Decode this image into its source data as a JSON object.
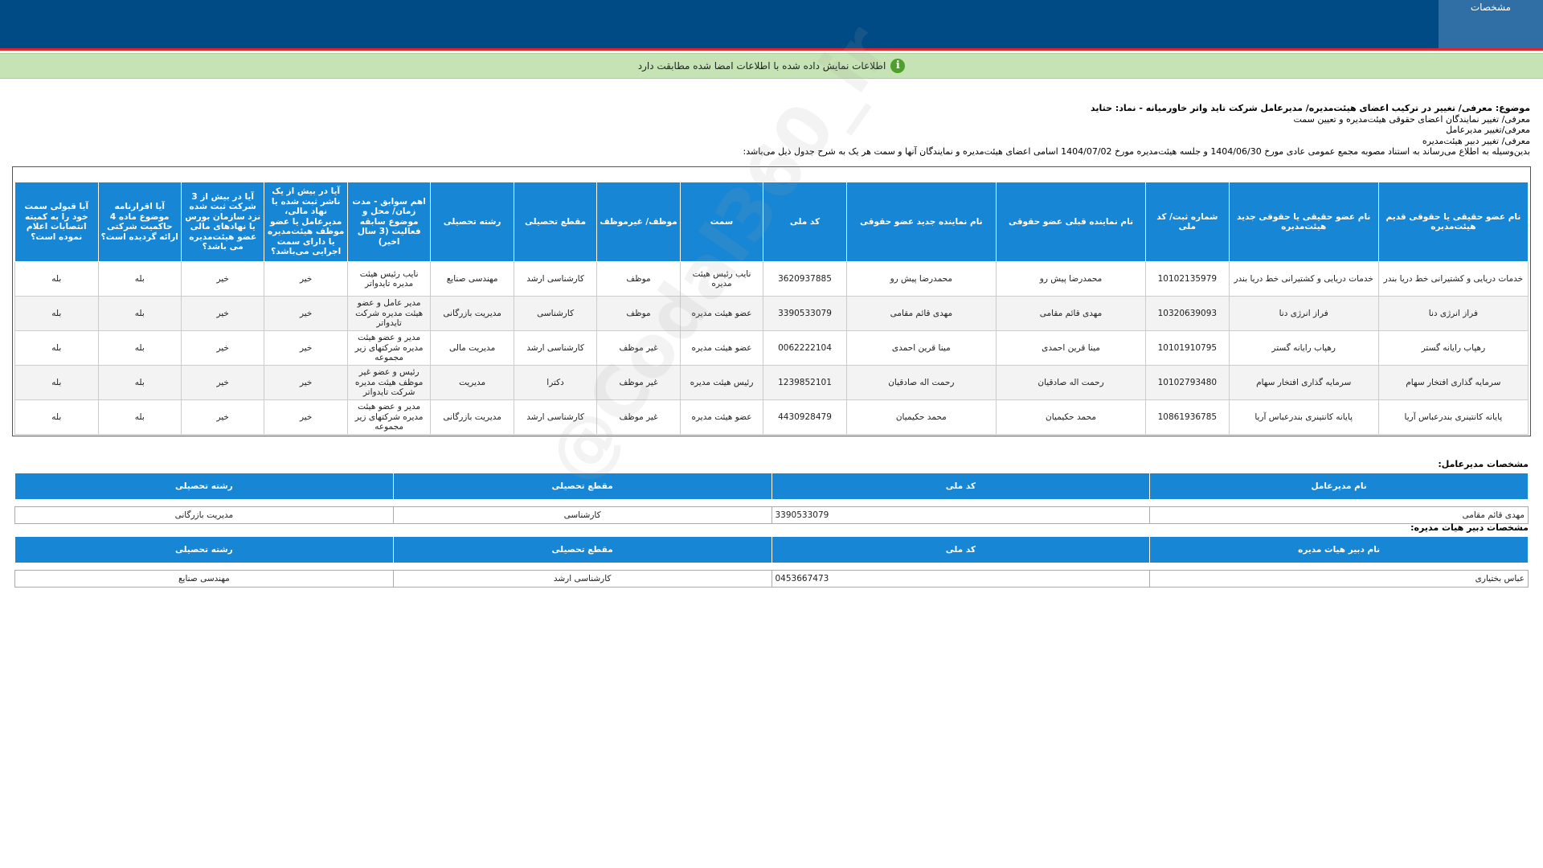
{
  "header": {
    "tab": "مشخصات"
  },
  "banner": "اطلاعات نمایش داده شده با اطلاعات امضا شده مطابقت دارد",
  "subject": {
    "title": "موضوع: معرفی/ تغییر در ترکیب اعضای هیئت‌مدیره/ مدیرعامل شرکت تاید واتر خاورمیانه - نماد: حتاید",
    "lines": [
      "معرفی/ تغییر نمایندگان اعضای حقوقی هیئت‌مدیره و تعیین سمت",
      "معرفی/تغییر مدیرعامل",
      "معرفی/ تغییر دبیر هیئت‌مدیره"
    ],
    "intro": "بدین‌وسیله به اطلاع می‌رساند به استناد مصوبه مجمع عمومی عادی مورخ 1404/06/30 و جلسه هیئت‌مدیره مورخ 1404/07/02 اسامی اعضای هیئت‌مدیره و نمایندگان آنها و سمت هر یک به شرح جدول ذیل می‌باشد:"
  },
  "board_table": {
    "columns": [
      "نام عضو حقیقی یا حقوقی قدیم هیئت‌مدیره",
      "نام عضو حقیقی یا حقوقی جدید هیئت‌مدیره",
      "شماره ثبت/ کد ملی",
      "نام نماینده قبلی عضو حقوقی",
      "نام نماینده جدید عضو حقوقی",
      "کد ملی",
      "سمت",
      "موظف/ غیرموظف",
      "مقطع تحصیلی",
      "رشته تحصیلی",
      "اهم سوابق - مدت زمان/ محل و موضوع سابقه فعالیت (3 سال اخیر)",
      "آیا در بیش از یک ناشر ثبت شده یا نهاد مالی، مدیرعامل یا عضو موظف هیئت‌مدیره یا دارای سمت اجرایی می‌باشد؟",
      "آیا در بیش از 3 شرکت ثبت شده نزد سازمان بورس یا نهادهای مالی عضو هیئت‌مدیره می باشد؟",
      "آیا اقرارنامه موضوع ماده 4 حاکمیت شرکتی ارائه گردیده است؟",
      "آیا قبولی سمت خود را به کمیته انتصابات اعلام نموده است؟"
    ],
    "rows": [
      [
        "خدمات دریایی و کشتیرانی خط دریا بندر",
        "خدمات دریایی و کشتیرانی خط دریا بندر",
        "10102135979",
        "محمدرضا پیش رو",
        "محمدرضا پیش رو",
        "3620937885",
        "نایب رئیس هیئت مدیره",
        "موظف",
        "کارشناسی ارشد",
        "مهندسی صنایع",
        "نایب رئیس هیئت مدیره تایدواتر",
        "خیر",
        "خیر",
        "بله",
        "بله"
      ],
      [
        "فراز انرژی دنا",
        "فراز انرژی دنا",
        "10320639093",
        "مهدی قائم مقامی",
        "مهدی قائم مقامی",
        "3390533079",
        "عضو هیئت مدیره",
        "موظف",
        "کارشناسی",
        "مدیریت بازرگانی",
        "مدیر عامل و عضو هیئت مدیره شرکت تایدواتر",
        "خیر",
        "خیر",
        "بله",
        "بله"
      ],
      [
        "رهپاب رایانه گستر",
        "رهپاب رایانه گستر",
        "10101910795",
        "مینا قرین احمدی",
        "مینا قرین احمدی",
        "0062222104",
        "عضو هیئت مدیره",
        "غیر موظف",
        "کارشناسی ارشد",
        "مدیریت مالی",
        "مدیر و عضو هیئت مدیره شرکتهای زیر مجموعه",
        "خیر",
        "خیر",
        "بله",
        "بله"
      ],
      [
        "سرمایه گذاری افتخار سهام",
        "سرمایه گذاری افتخار سهام",
        "10102793480",
        "رحمت اله صادقیان",
        "رحمت اله صادقیان",
        "1239852101",
        "رئیس هیئت مدیره",
        "غیر موظف",
        "دکترا",
        "مدیریت",
        "رئیس و عضو غیر موظف هیئت مدیره شرکت تایدواتر",
        "خیر",
        "خیر",
        "بله",
        "بله"
      ],
      [
        "پایانه کانتینری بندرعباس آریا",
        "پایانه کانتینری بندرعباس آریا",
        "10861936785",
        "محمد حکیمیان",
        "محمد حکیمیان",
        "4430928479",
        "عضو هیئت مدیره",
        "غیر موظف",
        "کارشناسی ارشد",
        "مدیریت بازرگانی",
        "مدیر و عضو هیئت مدیره شرکتهای زیر مجموعه",
        "خیر",
        "خیر",
        "بله",
        "بله"
      ]
    ]
  },
  "ceo": {
    "label": "مشخصات مدیرعامل:",
    "columns": [
      "نام مدیرعامل",
      "کد ملی",
      "مقطع تحصیلی",
      "رشته تحصیلی"
    ],
    "rows": [
      [
        "مهدی قائم مقامی",
        "3390533079",
        "کارشناسی",
        "مدیریت بازرگانی"
      ]
    ]
  },
  "secretary": {
    "label": "مشخصات دبیر هیات مدیره:",
    "columns": [
      "نام دبیر هیات مدیره",
      "کد ملی",
      "مقطع تحصیلی",
      "رشته تحصیلی"
    ],
    "rows": [
      [
        "عباس بختیاری",
        "0453667473",
        "کارشناسی ارشد",
        "مهندسی صنایع"
      ]
    ]
  },
  "watermark": "@Codal360_ir"
}
